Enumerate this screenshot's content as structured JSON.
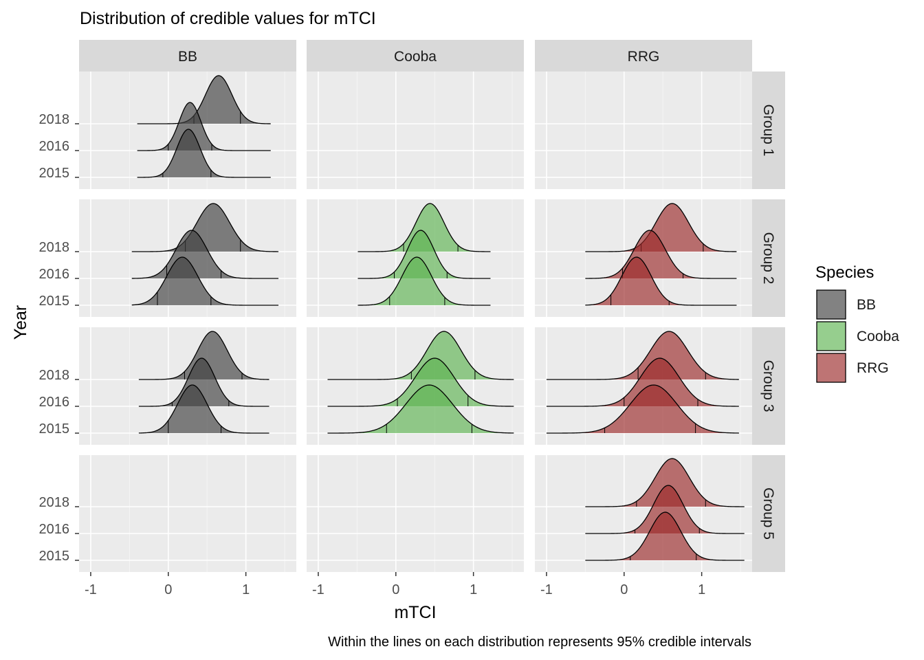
{
  "chart_data": {
    "type": "ridgeline",
    "title": "Distribution of credible values for mTCI",
    "xlabel": "mTCI",
    "ylabel": "Year",
    "caption": "Within the lines on each distribution represents 95% credible intervals",
    "xlim": [
      -1.15,
      1.65
    ],
    "x_ticks": [
      -1,
      0,
      1
    ],
    "x_tick_labels": [
      "-1",
      "0",
      "1"
    ],
    "years": [
      "2015",
      "2016",
      "2018"
    ],
    "columns": [
      "BB",
      "Cooba",
      "RRG"
    ],
    "rows": [
      "Group 1",
      "Group 2",
      "Group 3",
      "Group 5"
    ],
    "grid": true,
    "legend": {
      "title": "Species",
      "placement": "right",
      "items": [
        {
          "label": "BB",
          "color": "#3f3f3f"
        },
        {
          "label": "Cooba",
          "color": "#5db351"
        },
        {
          "label": "RRG",
          "color": "#9b2a2a"
        }
      ]
    },
    "densities": [
      {
        "species": "BB",
        "group": "Group 1",
        "year": "2015",
        "mode": 0.26,
        "sd": 0.15,
        "xmin": -0.4,
        "xmax": 1.32,
        "ci": [
          -0.07,
          0.55
        ]
      },
      {
        "species": "BB",
        "group": "Group 1",
        "year": "2016",
        "mode": 0.28,
        "sd": 0.14,
        "xmin": -0.4,
        "xmax": 1.32,
        "ci": [
          0.0,
          0.56
        ]
      },
      {
        "species": "BB",
        "group": "Group 1",
        "year": "2018",
        "mode": 0.65,
        "sd": 0.17,
        "xmin": -0.4,
        "xmax": 1.32,
        "ci": [
          0.33,
          0.93
        ]
      },
      {
        "species": "BB",
        "group": "Group 2",
        "year": "2015",
        "mode": 0.18,
        "sd": 0.2,
        "xmin": -0.47,
        "xmax": 1.42,
        "ci": [
          -0.14,
          0.55
        ]
      },
      {
        "species": "BB",
        "group": "Group 2",
        "year": "2016",
        "mode": 0.3,
        "sd": 0.2,
        "xmin": -0.47,
        "xmax": 1.42,
        "ci": [
          -0.02,
          0.68
        ]
      },
      {
        "species": "BB",
        "group": "Group 2",
        "year": "2018",
        "mode": 0.58,
        "sd": 0.21,
        "xmin": -0.47,
        "xmax": 1.42,
        "ci": [
          0.22,
          0.93
        ]
      },
      {
        "species": "BB",
        "group": "Group 3",
        "year": "2015",
        "mode": 0.31,
        "sd": 0.19,
        "xmin": -0.38,
        "xmax": 1.3,
        "ci": [
          0.0,
          0.68
        ]
      },
      {
        "species": "BB",
        "group": "Group 3",
        "year": "2016",
        "mode": 0.43,
        "sd": 0.17,
        "xmin": -0.38,
        "xmax": 1.3,
        "ci": [
          0.05,
          0.78
        ]
      },
      {
        "species": "BB",
        "group": "Group 3",
        "year": "2018",
        "mode": 0.57,
        "sd": 0.19,
        "xmin": -0.38,
        "xmax": 1.3,
        "ci": [
          0.21,
          0.95
        ]
      },
      {
        "species": "Cooba",
        "group": "Group 2",
        "year": "2015",
        "mode": 0.27,
        "sd": 0.19,
        "xmin": -0.49,
        "xmax": 1.22,
        "ci": [
          -0.08,
          0.63
        ]
      },
      {
        "species": "Cooba",
        "group": "Group 2",
        "year": "2016",
        "mode": 0.32,
        "sd": 0.17,
        "xmin": -0.49,
        "xmax": 1.22,
        "ci": [
          -0.02,
          0.66
        ]
      },
      {
        "species": "Cooba",
        "group": "Group 2",
        "year": "2018",
        "mode": 0.44,
        "sd": 0.18,
        "xmin": -0.49,
        "xmax": 1.22,
        "ci": [
          0.1,
          0.8
        ]
      },
      {
        "species": "Cooba",
        "group": "Group 3",
        "year": "2015",
        "mode": 0.43,
        "sd": 0.3,
        "xmin": -0.88,
        "xmax": 1.52,
        "ci": [
          -0.12,
          0.98
        ]
      },
      {
        "species": "Cooba",
        "group": "Group 3",
        "year": "2016",
        "mode": 0.5,
        "sd": 0.25,
        "xmin": -0.88,
        "xmax": 1.52,
        "ci": [
          0.02,
          0.93
        ]
      },
      {
        "species": "Cooba",
        "group": "Group 3",
        "year": "2018",
        "mode": 0.62,
        "sd": 0.22,
        "xmin": -0.88,
        "xmax": 1.52,
        "ci": [
          0.2,
          1.02
        ]
      },
      {
        "species": "RRG",
        "group": "Group 2",
        "year": "2015",
        "mode": 0.16,
        "sd": 0.19,
        "xmin": -0.5,
        "xmax": 1.45,
        "ci": [
          -0.17,
          0.58
        ]
      },
      {
        "species": "RRG",
        "group": "Group 2",
        "year": "2016",
        "mode": 0.33,
        "sd": 0.2,
        "xmin": -0.5,
        "xmax": 1.45,
        "ci": [
          -0.02,
          0.76
        ]
      },
      {
        "species": "RRG",
        "group": "Group 2",
        "year": "2018",
        "mode": 0.62,
        "sd": 0.21,
        "xmin": -0.5,
        "xmax": 1.45,
        "ci": [
          0.22,
          1.02
        ]
      },
      {
        "species": "RRG",
        "group": "Group 3",
        "year": "2015",
        "mode": 0.38,
        "sd": 0.3,
        "xmin": -1.0,
        "xmax": 1.48,
        "ci": [
          -0.25,
          0.92
        ]
      },
      {
        "species": "RRG",
        "group": "Group 3",
        "year": "2016",
        "mode": 0.46,
        "sd": 0.25,
        "xmin": -1.0,
        "xmax": 1.48,
        "ci": [
          0.0,
          0.95
        ]
      },
      {
        "species": "RRG",
        "group": "Group 3",
        "year": "2018",
        "mode": 0.58,
        "sd": 0.24,
        "xmin": -1.0,
        "xmax": 1.48,
        "ci": [
          0.18,
          1.05
        ]
      },
      {
        "species": "RRG",
        "group": "Group 5",
        "year": "2015",
        "mode": 0.53,
        "sd": 0.2,
        "xmin": -0.5,
        "xmax": 1.55,
        "ci": [
          0.08,
          0.93
        ]
      },
      {
        "species": "RRG",
        "group": "Group 5",
        "year": "2016",
        "mode": 0.57,
        "sd": 0.19,
        "xmin": -0.5,
        "xmax": 1.55,
        "ci": [
          0.14,
          0.97
        ]
      },
      {
        "species": "RRG",
        "group": "Group 5",
        "year": "2018",
        "mode": 0.62,
        "sd": 0.22,
        "xmin": -0.5,
        "xmax": 1.55,
        "ci": [
          0.16,
          1.05
        ]
      }
    ]
  }
}
